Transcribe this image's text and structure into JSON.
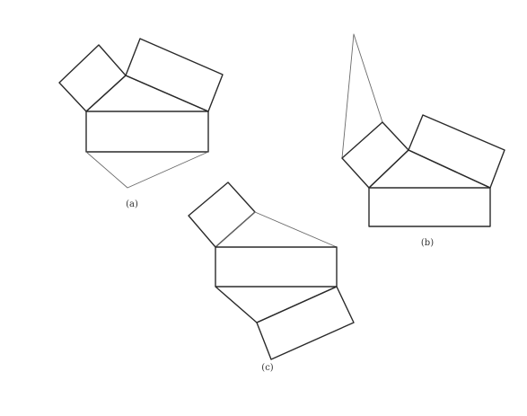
{
  "figures": [
    {
      "id": "a",
      "label": "(a)"
    },
    {
      "id": "b",
      "label": "(b)"
    },
    {
      "id": "c",
      "label": "(c)"
    }
  ],
  "colors": {
    "line": "#2a2a2a",
    "faint_line": "#6a6a6a",
    "background": "#ffffff"
  }
}
